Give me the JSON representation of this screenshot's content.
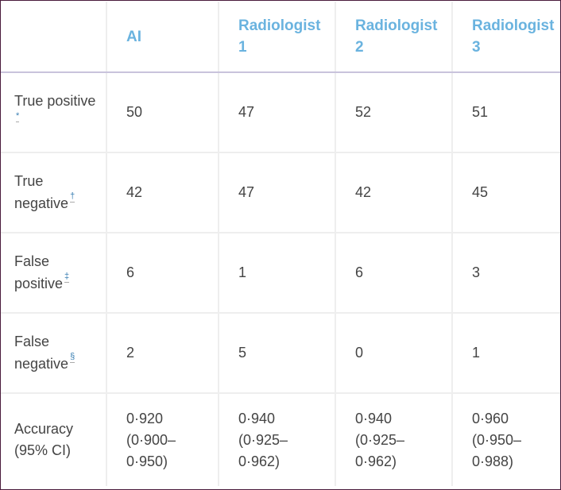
{
  "table": {
    "headers": [
      "",
      "AI",
      "Radiologist 1",
      "Radiologist 2",
      "Radiologist 3"
    ],
    "rows": [
      {
        "label": "True positive",
        "footnote": "*",
        "values": [
          "50",
          "47",
          "52",
          "51"
        ]
      },
      {
        "label": "True negative",
        "footnote": "†",
        "values": [
          "42",
          "47",
          "42",
          "45"
        ]
      },
      {
        "label": "False positive",
        "footnote": "‡",
        "values": [
          "6",
          "1",
          "6",
          "3"
        ]
      },
      {
        "label": "False negative",
        "footnote": "§",
        "values": [
          "2",
          "5",
          "0",
          "1"
        ]
      },
      {
        "label": "Accuracy (95% CI)",
        "footnote": "",
        "values": [
          "0·920 (0·900–0·950)",
          "0·940 (0·925–0·962)",
          "0·940 (0·925–0·962)",
          "0·960 (0·950–0·988)"
        ]
      }
    ]
  },
  "colors": {
    "header_text": "#6ab3df",
    "body_text": "#444444",
    "footnote_link": "#3a7fb3",
    "frame_border": "#4a1c3c",
    "grid": "#eeeeee",
    "header_rule": "#c9c3dc"
  }
}
